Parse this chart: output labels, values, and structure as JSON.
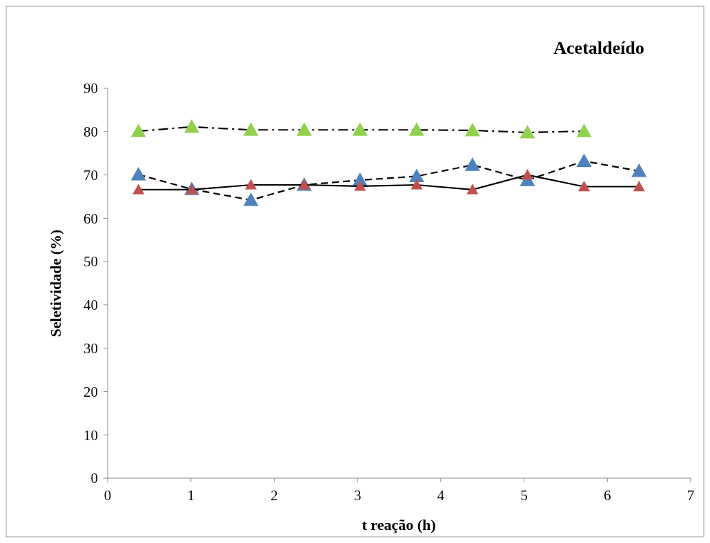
{
  "chart_data": {
    "type": "line",
    "title": "Acetaldeído",
    "xlabel": "t reação (h)",
    "ylabel": "Seletividade (%)",
    "xlim": [
      0,
      7
    ],
    "xticks": [
      0,
      1,
      2,
      3,
      4,
      5,
      6,
      7
    ],
    "ylim": [
      0,
      90
    ],
    "yticks": [
      0,
      10,
      20,
      30,
      40,
      50,
      60,
      70,
      80,
      90
    ],
    "grid": false,
    "marker": "triangle",
    "series": [
      {
        "color": "#92d050",
        "line_style": "dashdot",
        "x": [
          0.37,
          1.01,
          1.72,
          2.36,
          3.03,
          3.71,
          4.38,
          5.04,
          5.72
        ],
        "values": [
          80.1,
          81.1,
          80.4,
          80.4,
          80.4,
          80.4,
          80.3,
          79.8,
          80.1
        ]
      },
      {
        "color": "#4f81bd",
        "line_style": "dashed",
        "x": [
          0.37,
          1.01,
          1.72,
          2.36,
          3.03,
          3.71,
          4.38,
          5.04,
          5.72,
          6.38
        ],
        "values": [
          70.1,
          66.7,
          64.2,
          67.7,
          68.8,
          69.7,
          72.3,
          68.8,
          73.2,
          70.9
        ]
      },
      {
        "color": "#c0504d",
        "line_style": "solid",
        "x": [
          0.37,
          1.01,
          1.72,
          2.36,
          3.03,
          3.71,
          4.38,
          5.04,
          5.72,
          6.38
        ],
        "values": [
          66.6,
          66.6,
          67.7,
          67.7,
          67.4,
          67.7,
          66.6,
          70.0,
          67.3,
          67.3
        ]
      }
    ]
  }
}
